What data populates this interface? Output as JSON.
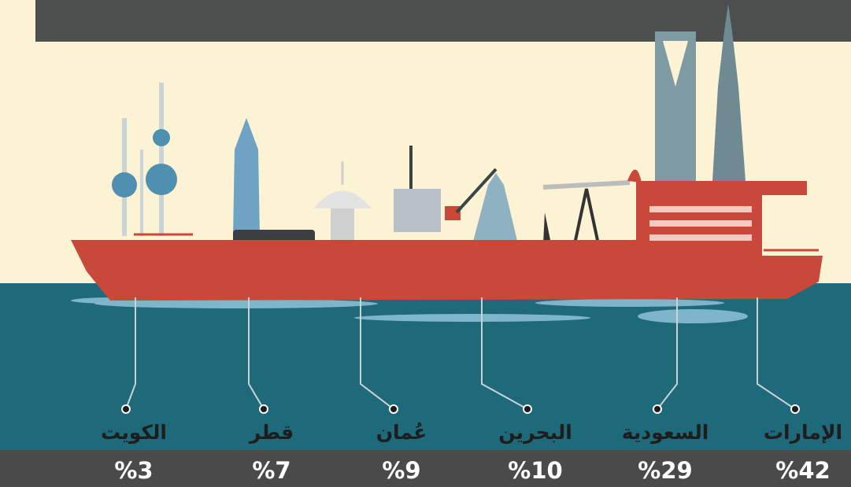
{
  "chart_data": {
    "type": "label",
    "categories": [
      "الإمارات",
      "السعودية",
      "البحرين",
      "عُمان",
      "قطر",
      "الكويت"
    ],
    "values": [
      42,
      29,
      10,
      9,
      7,
      3
    ],
    "value_labels": [
      "%42",
      "%29",
      "%10",
      "%9",
      "%7",
      "%3"
    ]
  }
}
